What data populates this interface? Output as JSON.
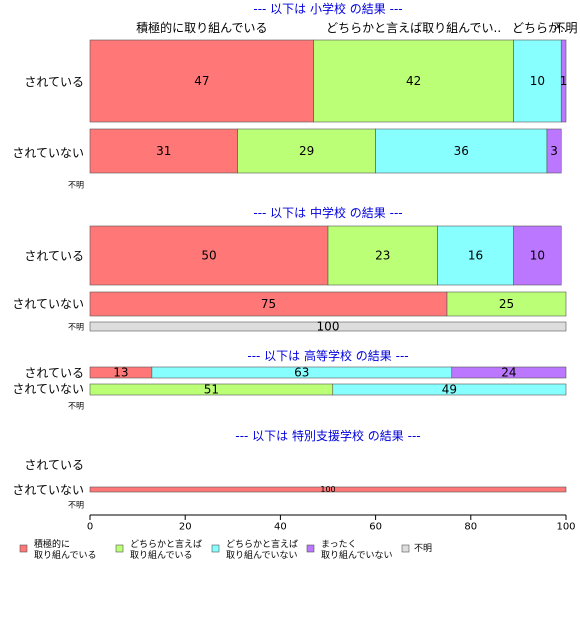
{
  "chart_data": {
    "type": "bar",
    "stacked": true,
    "orientation": "horizontal",
    "xlim": [
      0,
      100
    ],
    "ticks": [
      0,
      20,
      40,
      60,
      80,
      100
    ],
    "legend_position": "bottom",
    "categories": [
      {
        "name": "積極的に取り組んでいる",
        "legend": [
          "積極的に",
          "取り組んでいる"
        ],
        "color": "#ff7777"
      },
      {
        "name": "どちらかと言えば取り組んでいる",
        "legend": [
          "どちらかと言えば",
          "取り組んでいる"
        ],
        "color": "#bbff77"
      },
      {
        "name": "どちらかと言えば取り組んでいない",
        "legend": [
          "どちらかと言えば",
          "取り組んでいない"
        ],
        "color": "#88ffff"
      },
      {
        "name": "まったく取り組んでいない",
        "legend": [
          "まったく",
          "取り組んでいない"
        ],
        "color": "#bb77ff"
      },
      {
        "name": "不明",
        "legend": [
          "不明"
        ],
        "color": "#dddddd"
      }
    ],
    "top_labels": [
      {
        "text": "積極的に取り組んでいる",
        "at": 23.5
      },
      {
        "text": "どちらかと言えば取り組んでい..",
        "at": 68
      },
      {
        "text": "どちらか..",
        "at": 94.5
      },
      {
        "text": "不明",
        "at": 99.9
      }
    ],
    "sections": [
      {
        "title": "--- 以下は 小学校 の結果 ---",
        "groups": [
          {
            "label": "されている",
            "values": [
              47,
              42,
              10,
              1,
              0
            ]
          },
          {
            "label": "されていない",
            "values": [
              31,
              29,
              36,
              3,
              0
            ]
          },
          {
            "label": "不明",
            "values": [
              0,
              0,
              0,
              0,
              0
            ]
          }
        ]
      },
      {
        "title": "--- 以下は 中学校 の結果 ---",
        "groups": [
          {
            "label": "されている",
            "values": [
              50,
              23,
              16,
              10,
              0
            ]
          },
          {
            "label": "されていない",
            "values": [
              75,
              25,
              0,
              0,
              0
            ]
          },
          {
            "label": "不明",
            "values": [
              0,
              0,
              0,
              0,
              100
            ]
          }
        ]
      },
      {
        "title": "--- 以下は 高等学校 の結果 ---",
        "groups": [
          {
            "label": "されている",
            "values": [
              13,
              0,
              63,
              24,
              0
            ]
          },
          {
            "label": "されていない",
            "values": [
              0,
              51,
              49,
              0,
              0
            ]
          },
          {
            "label": "不明",
            "values": [
              0,
              0,
              0,
              0,
              0
            ]
          }
        ]
      },
      {
        "title": "--- 以下は 特別支援学校 の結果 ---",
        "groups": [
          {
            "label": "されている",
            "values": [
              0,
              0,
              0,
              0,
              0
            ]
          },
          {
            "label": "されていない",
            "values": [
              100,
              0,
              0,
              0,
              0
            ]
          },
          {
            "label": "不明",
            "values": [
              0,
              0,
              0,
              0,
              0
            ]
          }
        ]
      }
    ]
  }
}
